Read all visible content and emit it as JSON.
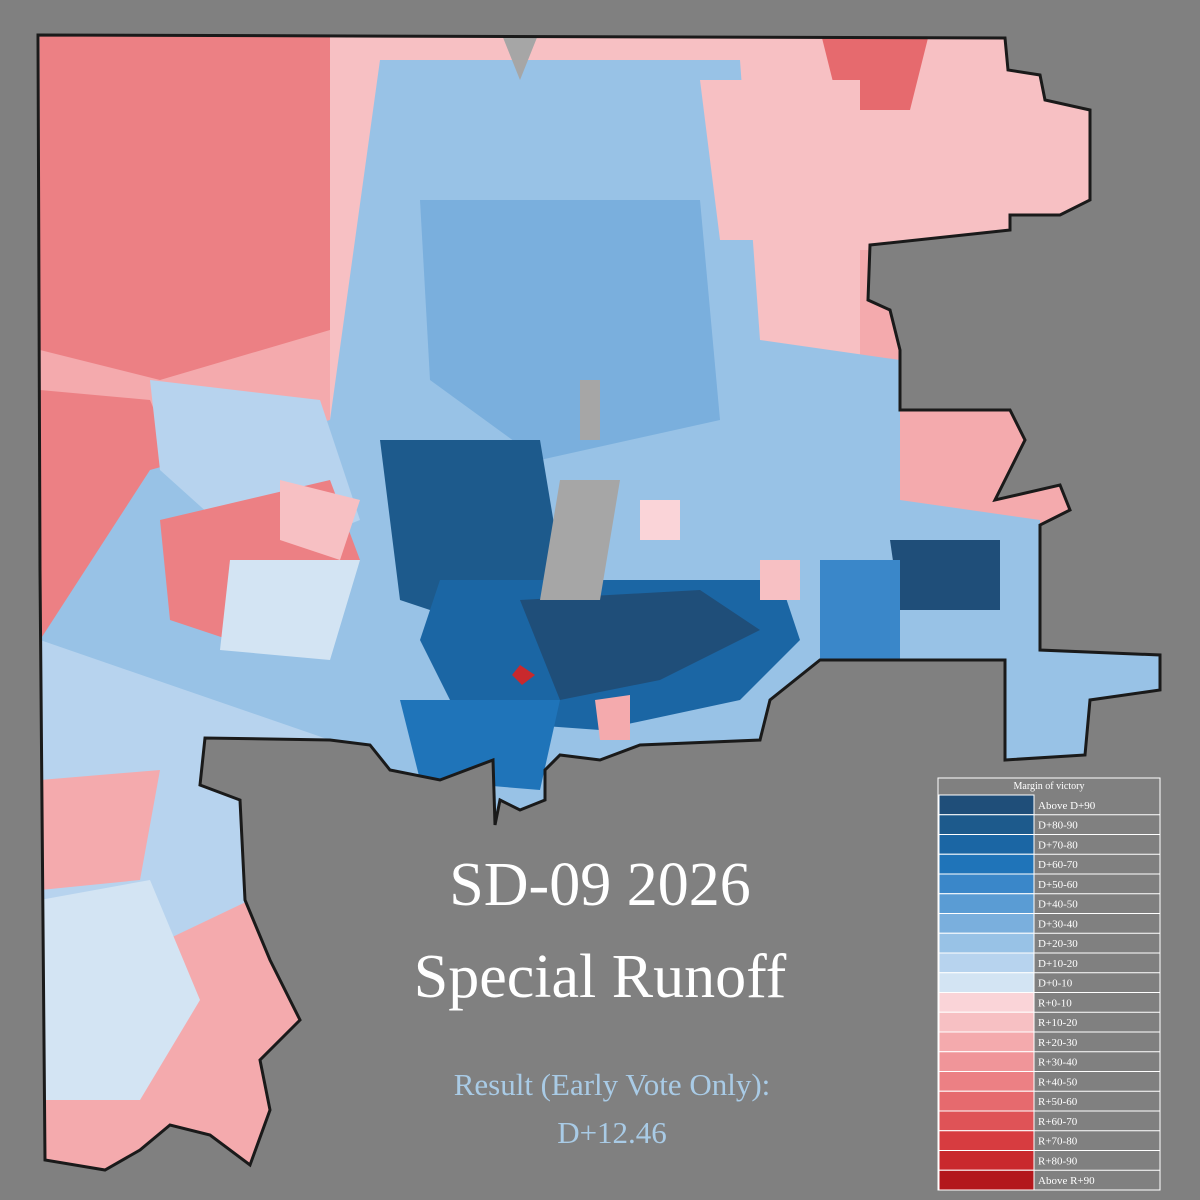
{
  "title": [
    "SD-09 2026",
    "Special Runoff"
  ],
  "result": {
    "label": "Result (Early Vote Only):",
    "value": "D+12.46"
  },
  "legend": {
    "title": "Margin of victory",
    "entries": [
      {
        "label": "Above D+90",
        "color": "#1f4e79"
      },
      {
        "label": "D+80-90",
        "color": "#1d5a8c"
      },
      {
        "label": "D+70-80",
        "color": "#1b66a4"
      },
      {
        "label": "D+60-70",
        "color": "#1f74b9"
      },
      {
        "label": "D+50-60",
        "color": "#3a87c9"
      },
      {
        "label": "D+40-50",
        "color": "#5a9cd4"
      },
      {
        "label": "D+30-40",
        "color": "#7aafdd"
      },
      {
        "label": "D+20-30",
        "color": "#98c2e6"
      },
      {
        "label": "D+10-20",
        "color": "#b7d3ee"
      },
      {
        "label": "D+0-10",
        "color": "#d3e4f3"
      },
      {
        "label": "R+0-10",
        "color": "#fad4d8"
      },
      {
        "label": "R+10-20",
        "color": "#f7c0c3"
      },
      {
        "label": "R+20-30",
        "color": "#f4aaad"
      },
      {
        "label": "R+30-40",
        "color": "#f09599"
      },
      {
        "label": "R+40-50",
        "color": "#ec8084"
      },
      {
        "label": "R+50-60",
        "color": "#e66a6e"
      },
      {
        "label": "R+60-70",
        "color": "#df5357"
      },
      {
        "label": "R+70-80",
        "color": "#d73c40"
      },
      {
        "label": "R+80-90",
        "color": "#c9292d"
      },
      {
        "label": "Above R+90",
        "color": "#b3171c"
      }
    ]
  }
}
